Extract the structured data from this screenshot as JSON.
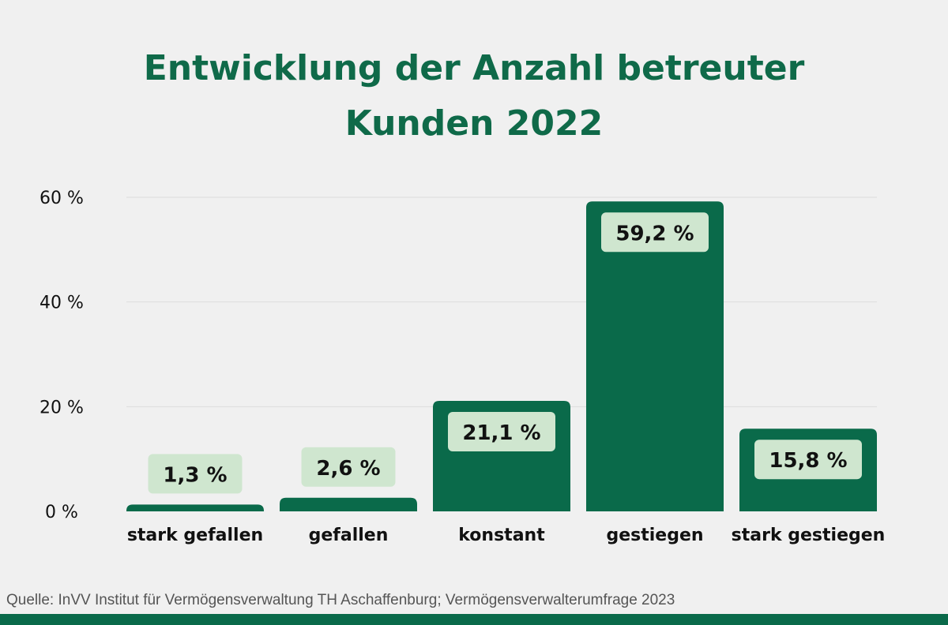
{
  "colors": {
    "background": "#f0f0f0",
    "title": "#0f6a49",
    "bar": "#0a6a4a",
    "label_box": "#cfe6cf",
    "gridline": "#dddddd",
    "text": "#111111"
  },
  "chart_data": {
    "type": "bar",
    "title_lines": [
      "Entwicklung der Anzahl betreuter",
      "Kunden 2022"
    ],
    "categories": [
      "stark gefallen",
      "gefallen",
      "konstant",
      "gestiegen",
      "stark gestiegen"
    ],
    "values": [
      1.3,
      2.6,
      21.1,
      59.2,
      15.8
    ],
    "value_labels": [
      "1,3 %",
      "2,6 %",
      "21,1 %",
      "59,2 %",
      "15,8 %"
    ],
    "yticks": [
      0,
      20,
      40,
      60
    ],
    "ytick_labels": [
      "0 %",
      "20 %",
      "40 %",
      "60 %"
    ],
    "ylim": [
      0,
      60
    ],
    "grid": true,
    "legend": "none"
  },
  "source": "Quelle: InVV Institut für Vermögensverwaltung TH Aschaffenburg; Vermögensverwalterumfrage 2023"
}
